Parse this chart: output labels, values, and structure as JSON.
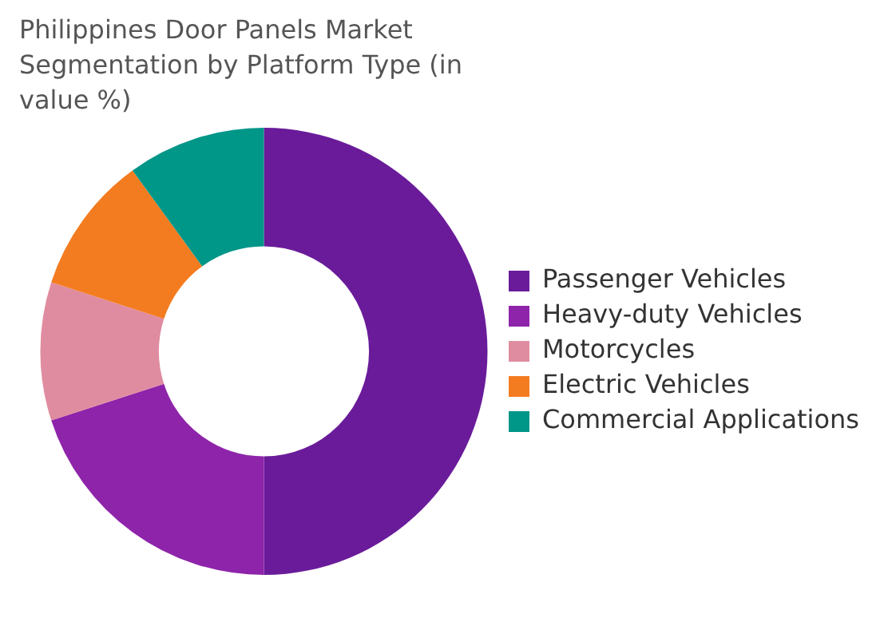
{
  "chart_data": {
    "type": "donut",
    "title": "Philippines Door Panels Market Segmentation by Platform Type (in value %)",
    "categories": [
      "Passenger Vehicles",
      "Heavy-duty Vehicles",
      "Motorcycles",
      "Electric Vehicles",
      "Commercial Applications"
    ],
    "values": [
      50,
      20,
      10,
      10,
      10
    ],
    "colors": [
      "#6a1b9a",
      "#8e24aa",
      "#e08ca0",
      "#f47c20",
      "#009688"
    ],
    "legend": "right"
  }
}
